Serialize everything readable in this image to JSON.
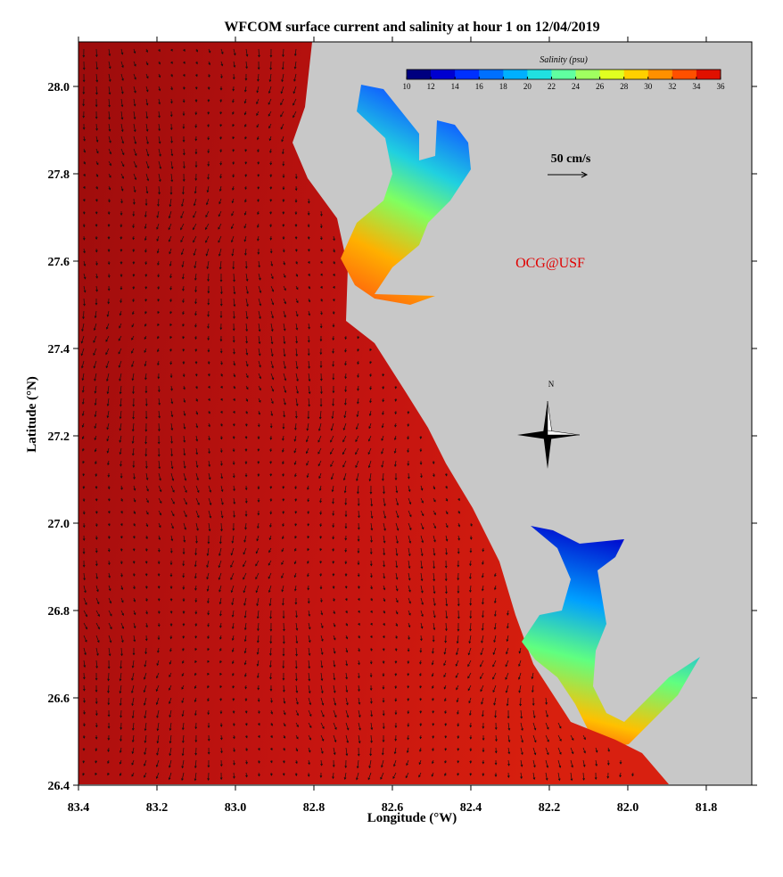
{
  "title": "WFCOM surface current and salinity at hour 1 on 12/04/2019",
  "x_axis": {
    "label": "Longitude (°W)",
    "lim": [
      83.4,
      81.684
    ],
    "ticks": [
      {
        "value": 83.4,
        "label": "83.4"
      },
      {
        "value": 83.2,
        "label": "83.2"
      },
      {
        "value": 83.0,
        "label": "83.0"
      },
      {
        "value": 82.8,
        "label": "82.8"
      },
      {
        "value": 82.6,
        "label": "82.6"
      },
      {
        "value": 82.4,
        "label": "82.4"
      },
      {
        "value": 82.2,
        "label": "82.2"
      },
      {
        "value": 82.0,
        "label": "82.0"
      },
      {
        "value": 81.8,
        "label": "81.8"
      }
    ]
  },
  "y_axis": {
    "label": "Latitude (°N)",
    "lim": [
      26.4,
      28.102
    ],
    "ticks": [
      {
        "value": 26.4,
        "label": "26.4"
      },
      {
        "value": 26.6,
        "label": "26.6"
      },
      {
        "value": 26.8,
        "label": "26.8"
      },
      {
        "value": 27.0,
        "label": "27.0"
      },
      {
        "value": 27.2,
        "label": "27.2"
      },
      {
        "value": 27.4,
        "label": "27.4"
      },
      {
        "value": 27.6,
        "label": "27.6"
      },
      {
        "value": 27.8,
        "label": "27.8"
      },
      {
        "value": 28.0,
        "label": "28.0"
      }
    ]
  },
  "colorbar": {
    "label": "Salinity (psu)",
    "lim": [
      10,
      36
    ],
    "ticks": [
      10,
      12,
      14,
      16,
      18,
      20,
      22,
      24,
      26,
      28,
      30,
      32,
      34,
      36
    ],
    "colors": [
      "#00007f",
      "#0000d0",
      "#0030ff",
      "#0070ff",
      "#00b0ff",
      "#20e0e0",
      "#60ffa0",
      "#a0ff60",
      "#e0ff20",
      "#ffd000",
      "#ff9000",
      "#ff5000",
      "#e01000"
    ]
  },
  "scale_label": "50 cm/s",
  "watermark": "OCG@USF",
  "compass": "N"
}
